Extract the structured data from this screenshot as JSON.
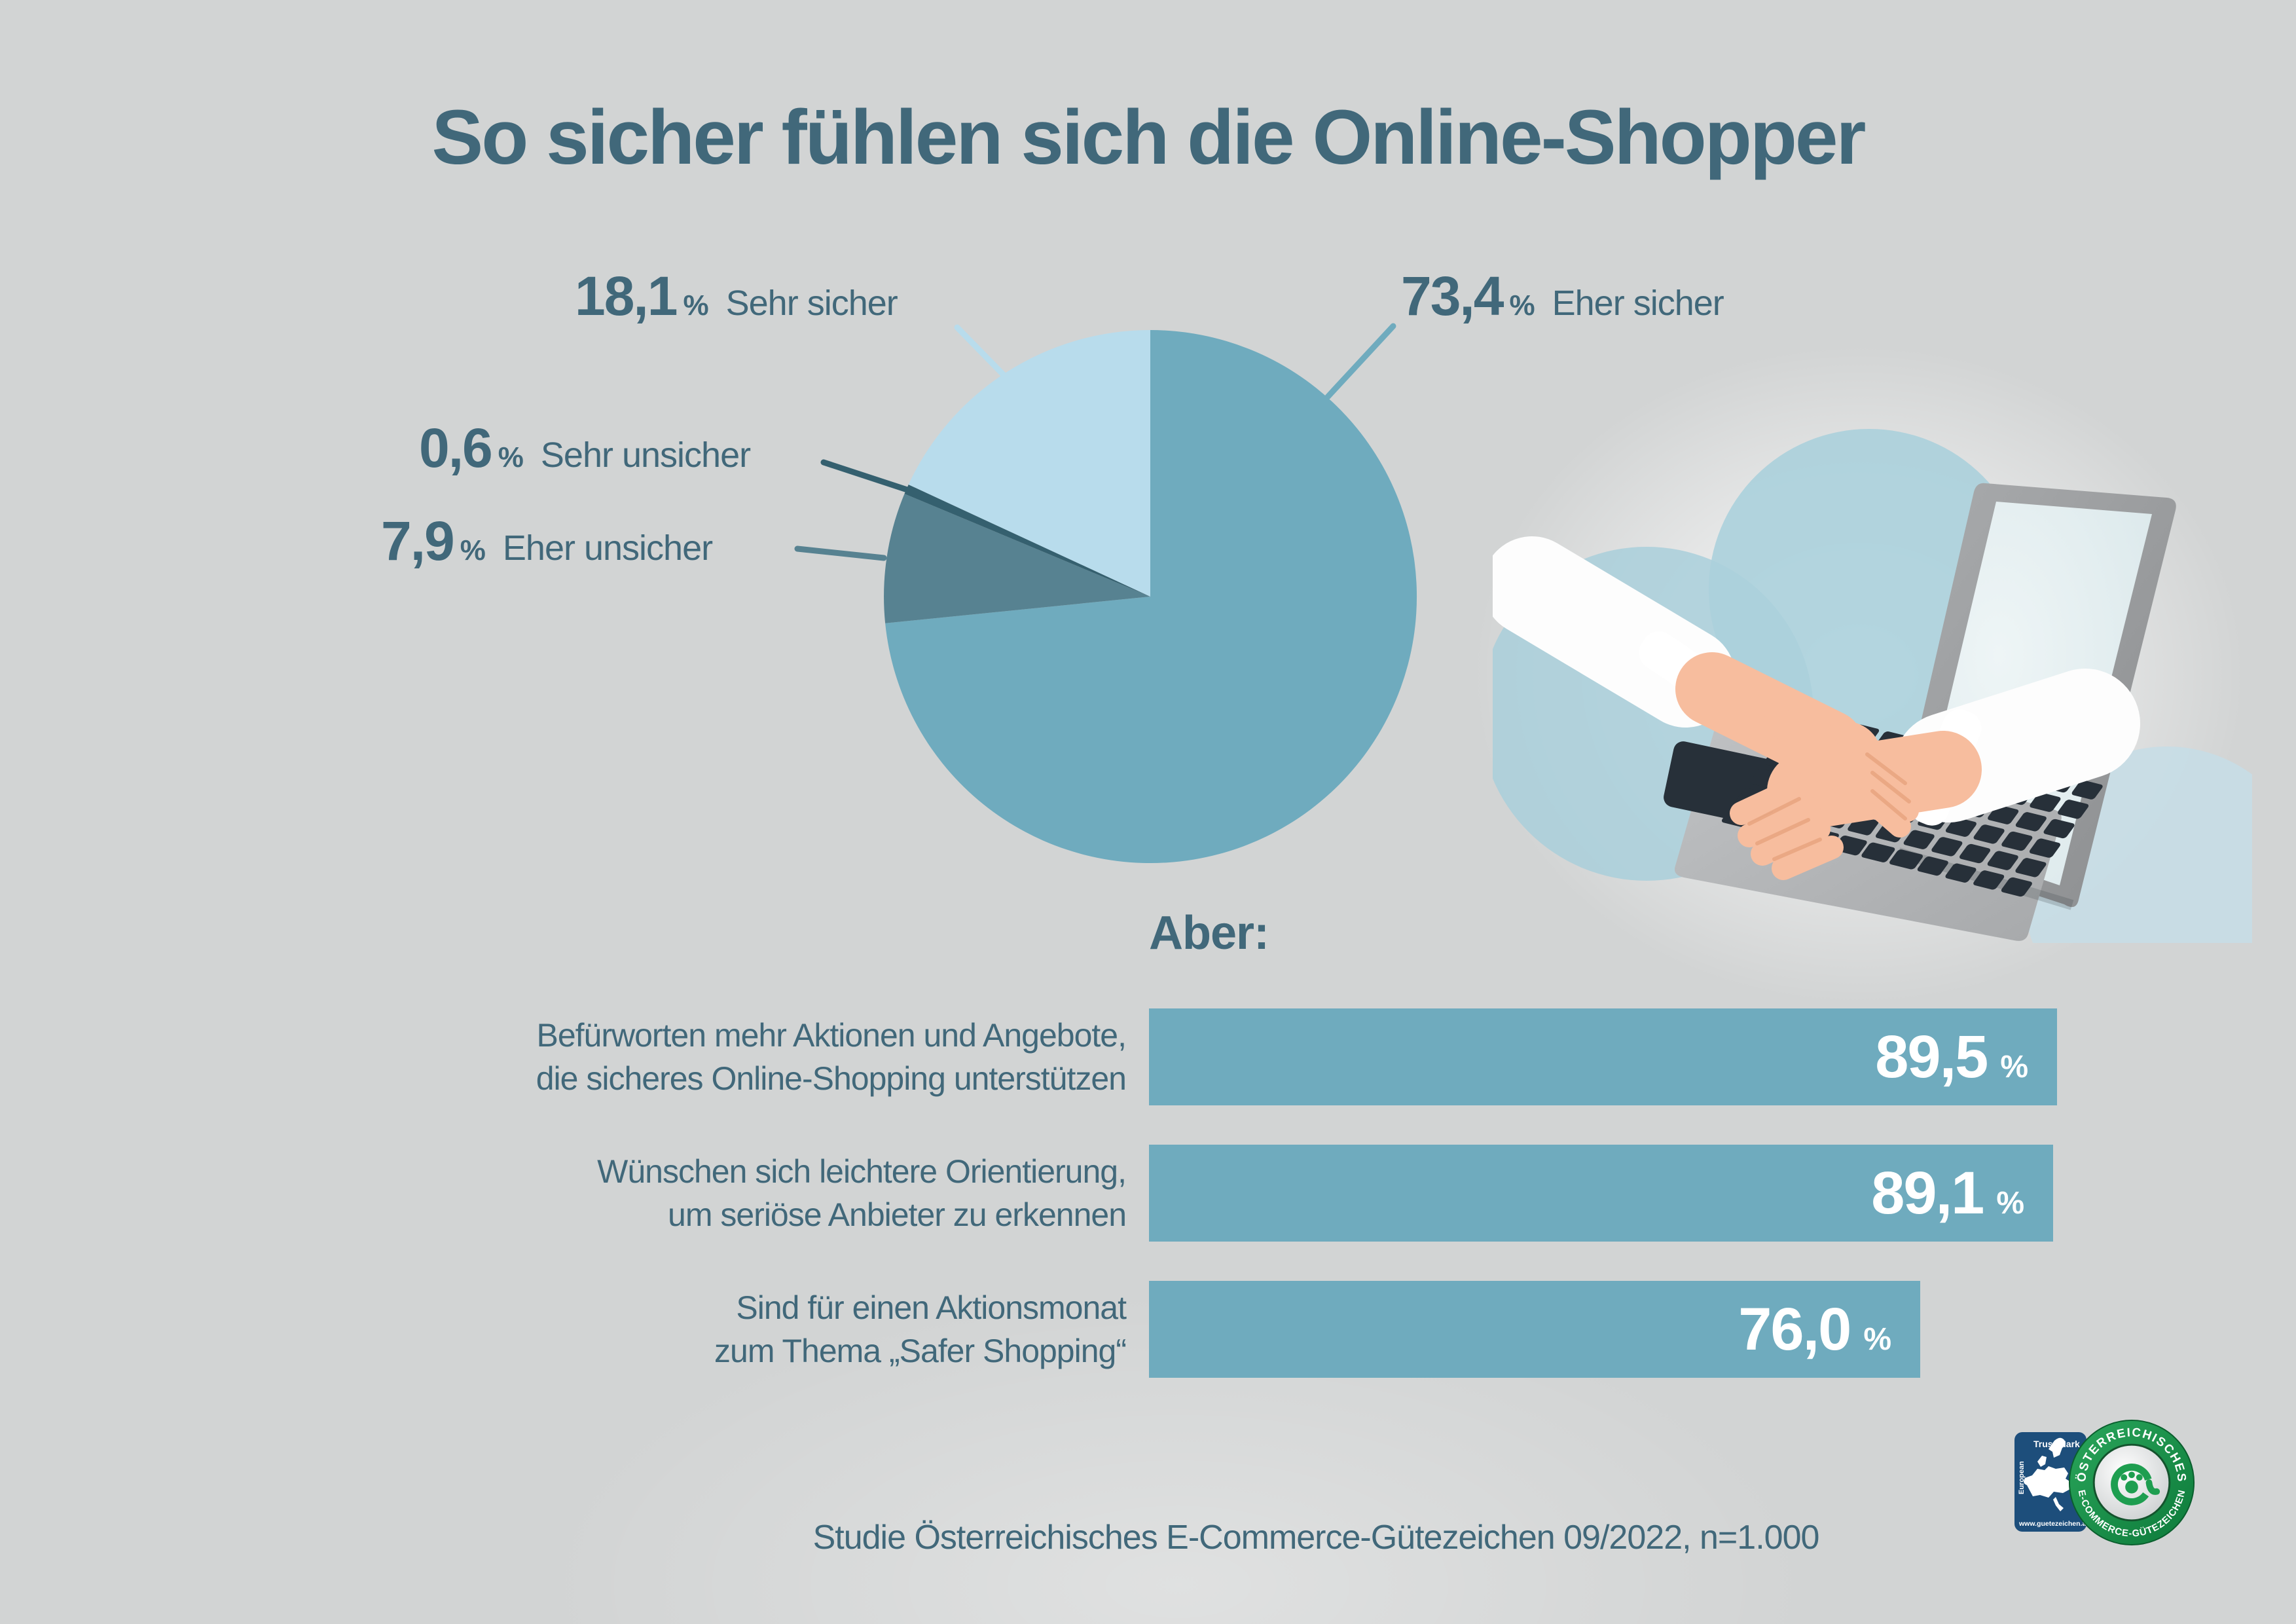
{
  "title": "So sicher fühlen sich die Online-Shopper",
  "colors": {
    "background": "#d2d4d4",
    "text_dark_teal": "#41687a",
    "accent_teal": "#6fabbe",
    "bar_value_white": "#ffffff",
    "seal_green": "#1e9e50",
    "trust_mark_blue": "#1d4e7b"
  },
  "chart_data": [
    {
      "type": "pie",
      "title": "So sicher fühlen sich die Online-Shopper",
      "start_angle_deg": 0,
      "direction": "clockwise",
      "legend_position": "callout-labels",
      "segments": [
        {
          "label": "Eher sicher",
          "value": 73.4,
          "value_label": "73,4",
          "unit": "%",
          "color": "#6fabbe"
        },
        {
          "label": "Eher unsicher",
          "value": 7.9,
          "value_label": "7,9",
          "unit": "%",
          "color": "#578291"
        },
        {
          "label": "Sehr unsicher",
          "value": 0.6,
          "value_label": "0,6",
          "unit": "%",
          "color": "#35606f"
        },
        {
          "label": "Sehr sicher",
          "value": 18.1,
          "value_label": "18,1",
          "unit": "%",
          "color": "#b8dcec"
        }
      ]
    },
    {
      "type": "bar",
      "title": "Aber:",
      "orientation": "horizontal",
      "xlim": [
        0,
        100
      ],
      "grid": false,
      "bar_color": "#6fabbe",
      "categories": [
        "Befürworten mehr Aktionen und Angebote, die sicheres Online-Shopping unterstützen",
        "Wünschen sich leichtere Orientierung, um seriöse Anbieter zu erkennen",
        "Sind für einen Aktionsmonat zum Thema „Safer Shopping“"
      ],
      "values": [
        89.5,
        89.1,
        76.0
      ],
      "value_labels": [
        "89,5",
        "89,1",
        "76,0"
      ],
      "unit": "%"
    }
  ],
  "bars": {
    "heading": "Aber:",
    "rows": [
      {
        "line1": "Befürworten mehr Aktionen und Angebote,",
        "line2": "die sicheres Online-Shopping unterstützen"
      },
      {
        "line1": "Wünschen sich leichtere Orientierung,",
        "line2": "um seriöse Anbieter zu erkennen"
      },
      {
        "line1": "Sind für einen Aktionsmonat",
        "line2": "zum Thema „Safer Shopping“"
      }
    ]
  },
  "source": "Studie Österreichisches E-Commerce-Gütezeichen 09/2022, n=1.000",
  "logo": {
    "trust_mark_top": "Trust Mark",
    "trust_mark_side": "European",
    "trust_mark_url": "www.guetezeichen.at",
    "seal_top": "ÖSTERREICHISCHES",
    "seal_bottom": "E-COMMERCE-GÜTEZEICHEN"
  }
}
